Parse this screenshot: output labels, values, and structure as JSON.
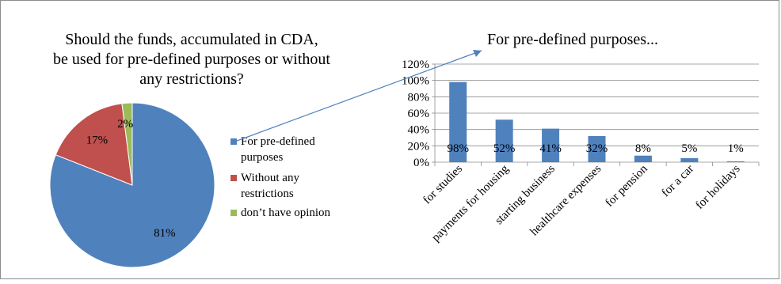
{
  "chart_data": [
    {
      "type": "pie",
      "title_lines": [
        "Should the funds, accumulated in CDA,",
        "be used for pre-defined purposes or without",
        "any restrictions?"
      ],
      "slices": [
        {
          "label_lines": [
            "For pre-defined",
            "purposes"
          ],
          "value": 81,
          "value_label": "81%",
          "color": "#4f81bd"
        },
        {
          "label_lines": [
            "Without any",
            "restrictions"
          ],
          "value": 17,
          "value_label": "17%",
          "color": "#c0504d"
        },
        {
          "label_lines": [
            "don’t have opinion"
          ],
          "value": 2,
          "value_label": "2%",
          "color": "#9bbb59"
        }
      ],
      "legend_position": "right"
    },
    {
      "type": "bar",
      "title": "For pre-defined purposes...",
      "categories": [
        "for studies",
        "payments for housing",
        "starting business",
        "healthcare expenses",
        "for pension",
        "for a car",
        "for holidays"
      ],
      "values": [
        98,
        52,
        41,
        32,
        8,
        5,
        1
      ],
      "value_labels": [
        "98%",
        "52%",
        "41%",
        "32%",
        "8%",
        "5%",
        "1%"
      ],
      "y_ticks": [
        "0%",
        "20%",
        "40%",
        "60%",
        "80%",
        "100%",
        "120%"
      ],
      "ylim": [
        0,
        120
      ],
      "grid": true,
      "bar_color": "#4f81bd"
    }
  ],
  "connector_color": "#4f81bd"
}
